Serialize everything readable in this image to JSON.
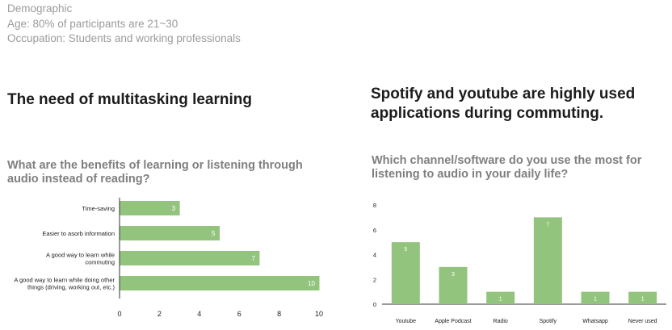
{
  "demographic": {
    "title": "Demographic",
    "age": "Age: 80% of participants are 21~30",
    "occupation": "Occupation: Students and working professionals"
  },
  "left": {
    "heading": "The need of multitasking learning",
    "question": "What are the benefits of learning or listening through audio instead of reading?"
  },
  "right": {
    "heading": "Spotify and youtube are highly used applications during commuting.",
    "question": "Which channel/software do you use the most for listening to audio in your daily life?"
  },
  "colors": {
    "bar": "#93c47d",
    "axis": "#333333",
    "text": "#222222"
  },
  "chart_data": [
    {
      "type": "bar",
      "orientation": "horizontal",
      "title": "What are the benefits of learning or listening through audio instead of reading?",
      "categories": [
        [
          "Time-saving"
        ],
        [
          "Easier to asorb information"
        ],
        [
          "A good way to learn while",
          "commuting"
        ],
        [
          "A good way to learn while doing other",
          "things (driving, working out, etc.)"
        ]
      ],
      "values": [
        3,
        5,
        7,
        10
      ],
      "xlim": [
        0,
        10
      ],
      "xticks": [
        0,
        2,
        4,
        6,
        8,
        10
      ],
      "data_labels": true,
      "grid": false
    },
    {
      "type": "bar",
      "orientation": "vertical",
      "title": "Which channel/software do you use the most for listening to audio in your daily life?",
      "categories": [
        "Youtube",
        "Apple Podcast",
        "Radio",
        "Spotify",
        "Whatsapp",
        "Never used"
      ],
      "values": [
        5,
        3,
        1,
        7,
        1,
        1
      ],
      "ylim": [
        0,
        8
      ],
      "yticks": [
        0,
        2,
        4,
        6,
        8
      ],
      "data_labels": true,
      "grid": false
    }
  ]
}
